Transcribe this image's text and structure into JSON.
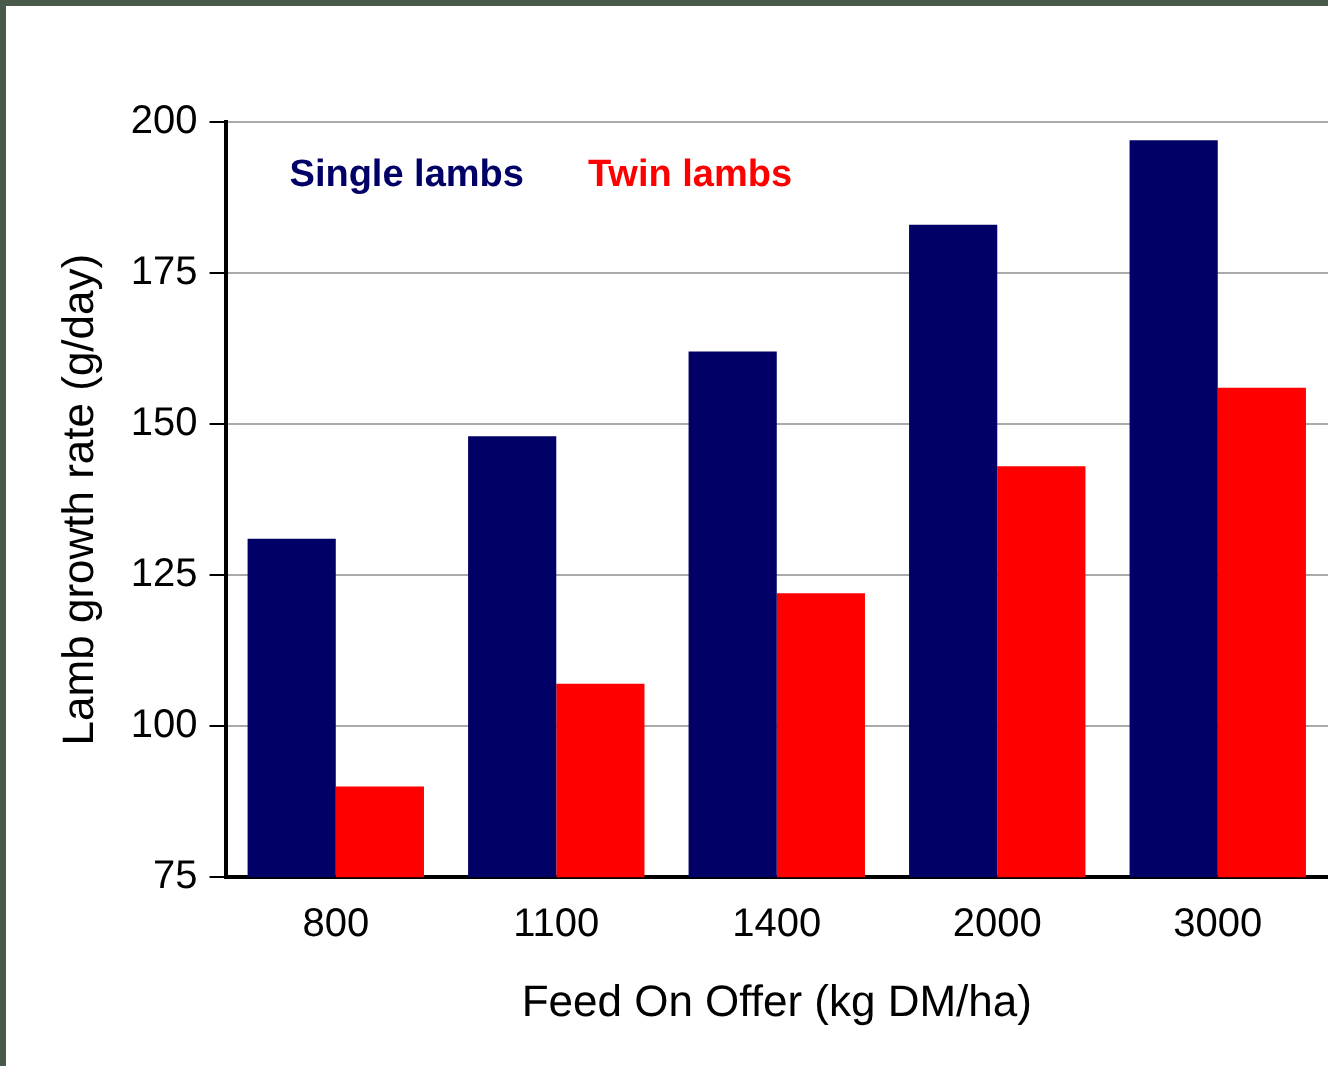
{
  "chart_data": {
    "type": "bar",
    "xlabel": "Feed On Offer (kg DM/ha)",
    "ylabel": "Lamb growth rate (g/day)",
    "categories": [
      "800",
      "1100",
      "1400",
      "2000",
      "3000"
    ],
    "series": [
      {
        "name": "Single lambs",
        "color": "#000066",
        "values": [
          131,
          148,
          162,
          183,
          197
        ]
      },
      {
        "name": "Twin lambs",
        "color": "#ff0000",
        "values": [
          90,
          107,
          122,
          143,
          156
        ]
      }
    ],
    "ylim": [
      75,
      200
    ],
    "yticks": [
      75,
      100,
      125,
      150,
      175,
      200
    ],
    "grid": "y",
    "legend": "top left"
  }
}
